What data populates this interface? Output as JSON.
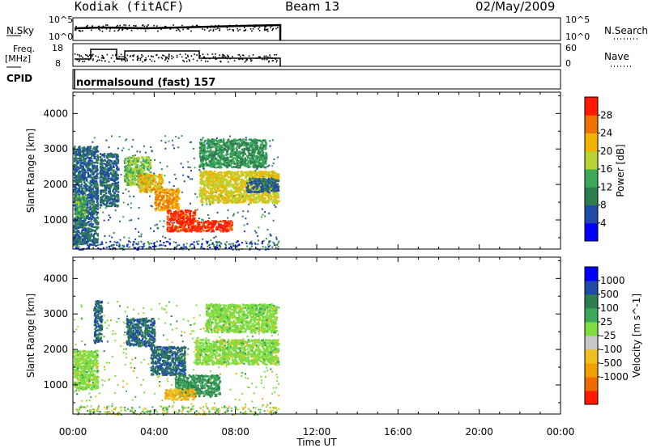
{
  "header": {
    "station": "Kodiak (fitACF)",
    "beam": "Beam 13",
    "date": "02/May/2009"
  },
  "left_labels": {
    "nsky": "N.Sky",
    "freq": "Freq.",
    "freq_unit": "[MHz]",
    "cpid": "CPID"
  },
  "right_labels": {
    "nsearch": "N.Search",
    "nave": "Nave"
  },
  "nsky_axis": {
    "top": "10^5",
    "bottom": "10^0"
  },
  "freq_axis": {
    "top": "18",
    "bottom": "8"
  },
  "nave_axis": {
    "top": "60",
    "bottom": "0"
  },
  "cpid_text": "normalsound (fast) 157",
  "colors": {
    "power": [
      "#0000ff",
      "#1f4aa8",
      "#2e7d4f",
      "#3aaa5a",
      "#b7d432",
      "#f0b400",
      "#f07000",
      "#ff1a00"
    ],
    "velocity": [
      "#ff1a00",
      "#f06a00",
      "#f0a000",
      "#f0c020",
      "#c8c8c8",
      "#80dd40",
      "#3aaa5a",
      "#2e7d4f",
      "#1f4aa8",
      "#0000ff"
    ]
  },
  "chart_data": [
    {
      "type": "heatmap",
      "panel": "power",
      "ylabel": "Slant Range [km]",
      "xlim": [
        "00:00",
        "24:00"
      ],
      "ylim": [
        180,
        4600
      ],
      "yticks": [
        "1000",
        "2000",
        "3000",
        "4000"
      ],
      "colorbar_label": "Power [dB]",
      "colorbar_ticks": [
        "4",
        "8",
        "12",
        "16",
        "20",
        "24",
        "28"
      ],
      "colorbar_range": [
        0,
        32
      ],
      "data_hours": [
        0,
        10.1
      ],
      "regions": [
        {
          "t0": 0.0,
          "t1": 1.2,
          "r0": 300,
          "r1": 3100,
          "level": 8
        },
        {
          "t0": 0.1,
          "t1": 0.6,
          "r0": 1100,
          "r1": 1700,
          "level": 14
        },
        {
          "t0": 1.3,
          "t1": 2.2,
          "r0": 1400,
          "r1": 2900,
          "level": 8
        },
        {
          "t0": 2.5,
          "t1": 3.8,
          "r0": 2000,
          "r1": 2800,
          "level": 16
        },
        {
          "t0": 3.2,
          "t1": 4.4,
          "r0": 1800,
          "r1": 2300,
          "level": 22
        },
        {
          "t0": 4.0,
          "t1": 5.2,
          "r0": 1300,
          "r1": 1900,
          "level": 24
        },
        {
          "t0": 4.6,
          "t1": 6.0,
          "r0": 700,
          "r1": 1300,
          "level": 30
        },
        {
          "t0": 6.0,
          "t1": 7.8,
          "r0": 700,
          "r1": 1000,
          "level": 30
        },
        {
          "t0": 6.2,
          "t1": 10.1,
          "r0": 1500,
          "r1": 2400,
          "level": 20
        },
        {
          "t0": 6.2,
          "t1": 9.5,
          "r0": 2500,
          "r1": 3300,
          "level": 12
        },
        {
          "t0": 8.5,
          "t1": 10.1,
          "r0": 1800,
          "r1": 2200,
          "level": 8
        }
      ]
    },
    {
      "type": "heatmap",
      "panel": "velocity",
      "ylabel": "Slant Range [km]",
      "xlabel": "Time UT",
      "xlim": [
        "00:00",
        "24:00"
      ],
      "xticks": [
        "00:00",
        "04:00",
        "08:00",
        "12:00",
        "16:00",
        "20:00",
        "00:00"
      ],
      "ylim": [
        180,
        4600
      ],
      "yticks": [
        "1000",
        "2000",
        "3000",
        "4000"
      ],
      "colorbar_label": "Velocity [m s^-1]",
      "colorbar_ticks": [
        "1000",
        "500",
        "100",
        "25",
        "-25",
        "-100",
        "-500",
        "-1000"
      ],
      "data_hours": [
        0,
        10.1
      ],
      "regions": [
        {
          "t0": 0.0,
          "t1": 1.2,
          "r0": 900,
          "r1": 2000,
          "level": 0
        },
        {
          "t0": 1.0,
          "t1": 1.4,
          "r0": 2200,
          "r1": 3400,
          "level": 500
        },
        {
          "t0": 2.6,
          "t1": 4.0,
          "r0": 2100,
          "r1": 2900,
          "level": 500
        },
        {
          "t0": 3.8,
          "t1": 5.5,
          "r0": 1300,
          "r1": 2100,
          "level": 500
        },
        {
          "t0": 5.0,
          "t1": 7.2,
          "r0": 700,
          "r1": 1300,
          "level": 100
        },
        {
          "t0": 4.5,
          "t1": 6.0,
          "r0": 600,
          "r1": 900,
          "level": -100
        },
        {
          "t0": 6.0,
          "t1": 10.1,
          "r0": 1600,
          "r1": 2300,
          "level": 0
        },
        {
          "t0": 6.5,
          "t1": 10.0,
          "r0": 2500,
          "r1": 3300,
          "level": 0
        }
      ]
    }
  ]
}
